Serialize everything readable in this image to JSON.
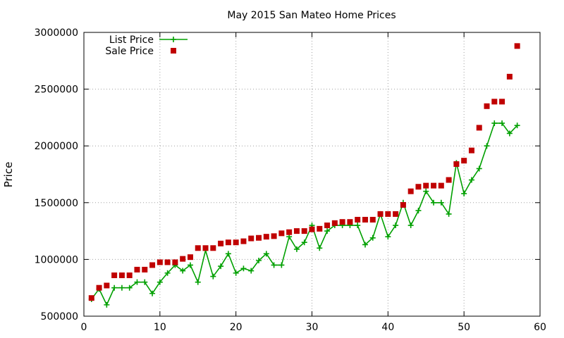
{
  "chart_data": {
    "type": "line",
    "title": "May 2015 San Mateo Home Prices",
    "xlabel": "",
    "ylabel": "Price",
    "xlim": [
      0,
      60
    ],
    "ylim": [
      500000,
      3000000
    ],
    "x_ticks": [
      "0",
      "10",
      "20",
      "30",
      "40",
      "50",
      "60"
    ],
    "y_ticks": [
      "500000",
      "1000000",
      "1500000",
      "2000000",
      "2500000",
      "3000000"
    ],
    "grid": true,
    "legend_position": "top-left",
    "series": [
      {
        "name": "List Price",
        "style": "linespoints",
        "marker": "plus",
        "color": "#00a000",
        "x": [
          1,
          2,
          3,
          4,
          5,
          6,
          7,
          8,
          9,
          10,
          11,
          12,
          13,
          14,
          15,
          16,
          17,
          18,
          19,
          20,
          21,
          22,
          23,
          24,
          25,
          26,
          27,
          28,
          29,
          30,
          31,
          32,
          33,
          34,
          35,
          36,
          37,
          38,
          39,
          40,
          41,
          42,
          43,
          44,
          45,
          46,
          47,
          48,
          49,
          50,
          51,
          52,
          53,
          54,
          55,
          56,
          57
        ],
        "y": [
          650000,
          740000,
          600000,
          750000,
          750000,
          750000,
          800000,
          800000,
          700000,
          800000,
          880000,
          950000,
          900000,
          950000,
          800000,
          1080000,
          850000,
          940000,
          1050000,
          880000,
          920000,
          900000,
          990000,
          1050000,
          950000,
          950000,
          1200000,
          1090000,
          1150000,
          1300000,
          1100000,
          1250000,
          1300000,
          1300000,
          1300000,
          1300000,
          1130000,
          1190000,
          1400000,
          1200000,
          1300000,
          1500000,
          1300000,
          1430000,
          1600000,
          1500000,
          1500000,
          1400000,
          1850000,
          1580000,
          1700000,
          1800000,
          2000000,
          2200000,
          2200000,
          2110000,
          2180000
        ]
      },
      {
        "name": "Sale Price",
        "style": "points",
        "marker": "square",
        "color": "#c00000",
        "x": [
          1,
          2,
          3,
          4,
          5,
          6,
          7,
          8,
          9,
          10,
          11,
          12,
          13,
          14,
          15,
          16,
          17,
          18,
          19,
          20,
          21,
          22,
          23,
          24,
          25,
          26,
          27,
          28,
          29,
          30,
          31,
          32,
          33,
          34,
          35,
          36,
          37,
          38,
          39,
          40,
          41,
          42,
          43,
          44,
          45,
          46,
          47,
          48,
          49,
          50,
          51,
          52,
          53,
          54,
          55,
          56,
          57
        ],
        "y": [
          660000,
          750000,
          770000,
          860000,
          860000,
          860000,
          910000,
          910000,
          950000,
          975000,
          975000,
          975000,
          1005000,
          1020000,
          1100000,
          1100000,
          1100000,
          1140000,
          1150000,
          1150000,
          1160000,
          1185000,
          1190000,
          1200000,
          1205000,
          1230000,
          1240000,
          1250000,
          1250000,
          1265000,
          1270000,
          1300000,
          1320000,
          1330000,
          1330000,
          1350000,
          1350000,
          1350000,
          1400000,
          1400000,
          1400000,
          1480000,
          1600000,
          1640000,
          1650000,
          1650000,
          1650000,
          1700000,
          1840000,
          1870000,
          1960000,
          2160000,
          2350000,
          2390000,
          2390000,
          2610000,
          2880000
        ]
      }
    ]
  }
}
